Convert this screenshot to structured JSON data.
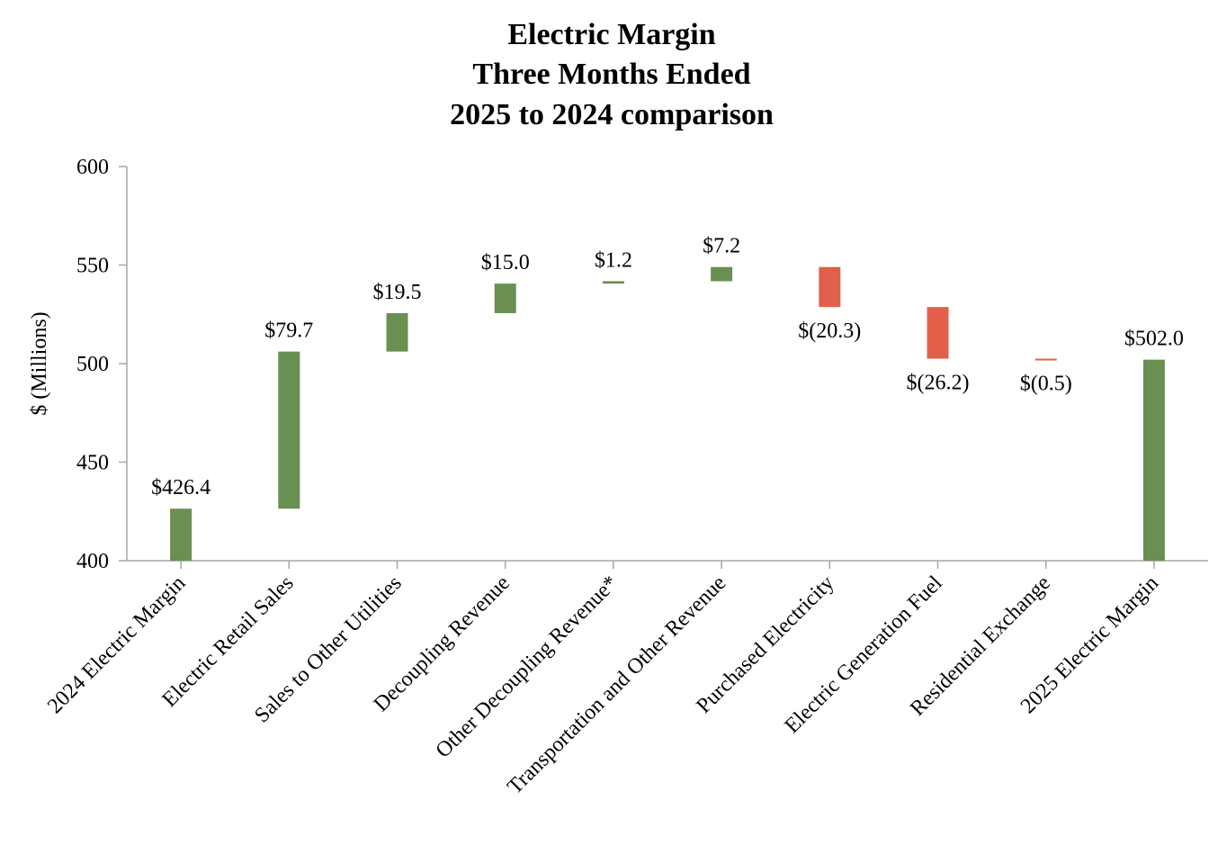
{
  "colors": {
    "increase": "#6a8f53",
    "decrease": "#e2604a",
    "total": "#6a8f53",
    "axis": "#a6a6a6"
  },
  "chart_data": {
    "type": "bar",
    "subtype": "waterfall",
    "title": [
      "Electric Margin",
      "Three Months Ended",
      "2025 to 2024 comparison"
    ],
    "xlabel": "",
    "ylabel": "$ (Millions)",
    "ylim": [
      400,
      600
    ],
    "yticks": [
      400,
      450,
      500,
      550,
      600
    ],
    "grid": false,
    "categories": [
      "2024 Electric Margin",
      "Electric Retail Sales",
      "Sales to Other Utilities",
      "Decoupling Revenue",
      "Other Decoupling Revenue*",
      "Transportation and Other Revenue",
      "Purchased Electricity",
      "Electric Generation Fuel",
      "Residential Exchange",
      "2025 Electric Margin"
    ],
    "values": [
      426.4,
      79.7,
      19.5,
      15.0,
      1.2,
      7.2,
      -20.3,
      -26.2,
      -0.5,
      502.0
    ],
    "kinds": [
      "total",
      "increase",
      "increase",
      "increase",
      "increase",
      "increase",
      "decrease",
      "decrease",
      "decrease",
      "total"
    ],
    "data_labels": [
      "$426.4",
      "$79.7",
      "$19.5",
      "$15.0",
      "$1.2",
      "$7.2",
      "$(20.3)",
      "$(26.2)",
      "$(0.5)",
      "$502.0"
    ]
  }
}
